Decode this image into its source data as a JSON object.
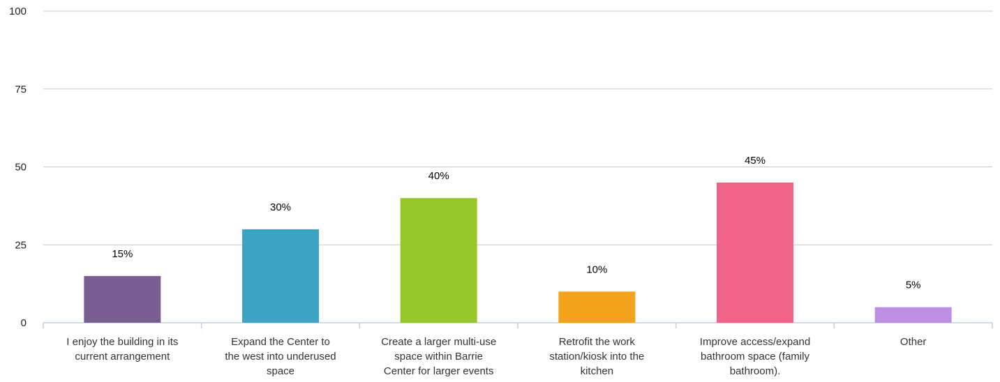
{
  "chart_data": {
    "type": "bar",
    "title": "",
    "xlabel": "",
    "ylabel": "",
    "ylim": [
      0,
      100
    ],
    "yticks": [
      0,
      25,
      50,
      75,
      100
    ],
    "grid": true,
    "legend": "none",
    "value_suffix": "%",
    "categories": [
      [
        "I enjoy the building in its",
        "current arrangement"
      ],
      [
        "Expand the Center to",
        "the west into underused",
        "space"
      ],
      [
        "Create a larger multi-use",
        "space within Barrie",
        "Center for larger events"
      ],
      [
        "Retrofit the work",
        "station/kiosk into the",
        "kitchen"
      ],
      [
        "Improve access/expand",
        "bathroom space (family",
        "bathroom)."
      ],
      [
        "Other"
      ]
    ],
    "values": [
      15,
      30,
      40,
      10,
      45,
      5
    ],
    "colors": [
      "#7B5E91",
      "#3EA3C3",
      "#96C72A",
      "#F3A31C",
      "#EF6488",
      "#BD8FE3"
    ],
    "gridline_color": "#C8C8C8",
    "axis_color": "#BFD0DE"
  }
}
